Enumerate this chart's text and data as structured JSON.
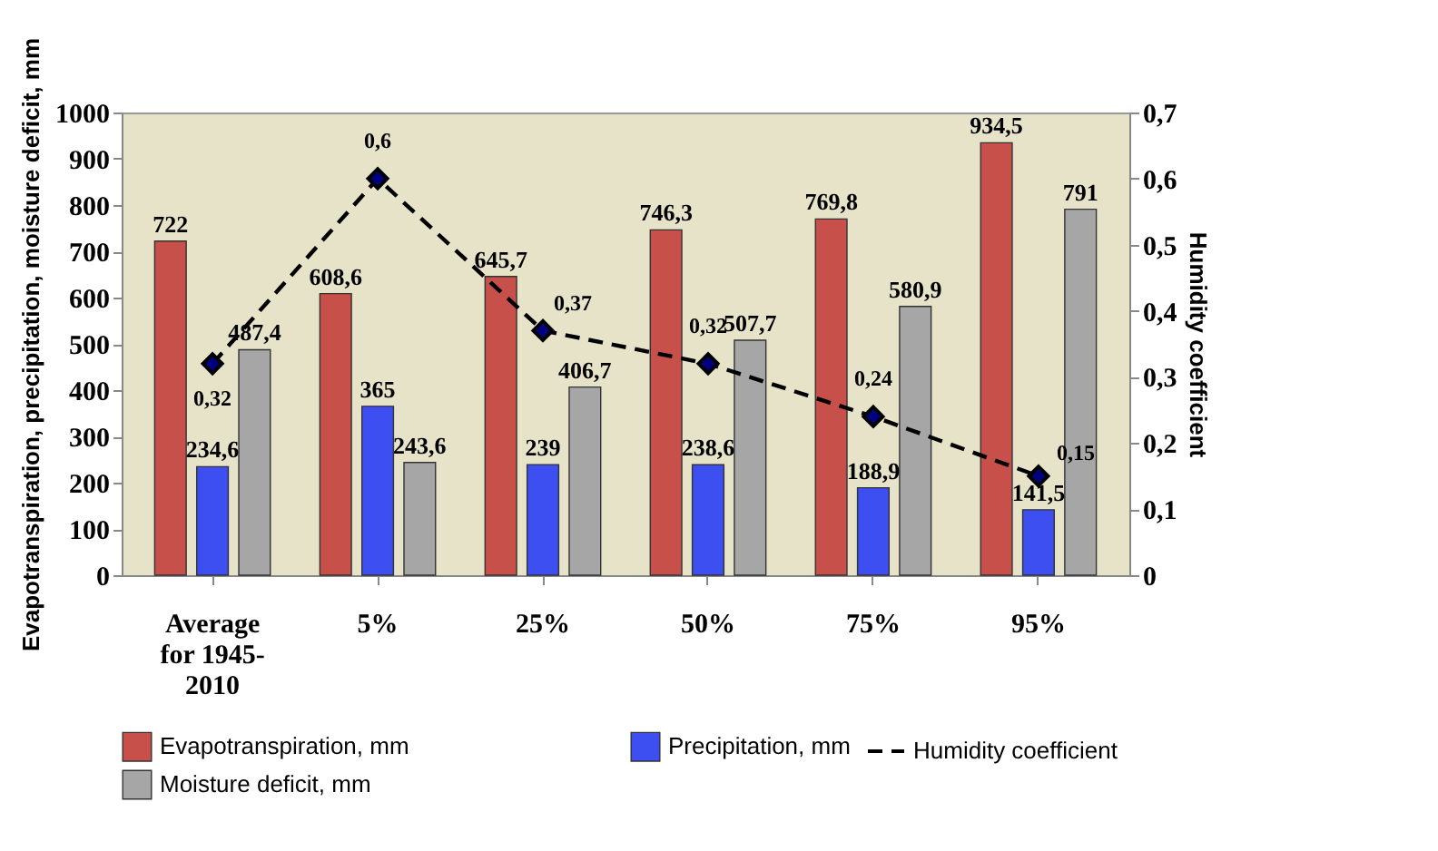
{
  "chart_data": {
    "type": "bar",
    "ylabel": "Evapotranspiration, precipitation, moisture deficit, mm",
    "y2label": "Humidity coefficient",
    "categories": [
      "Average for 1945-2010",
      "5%",
      "25%",
      "50%",
      "75%",
      "95%"
    ],
    "series": [
      {
        "name": "Evapotranspiration, mm",
        "color": "#c8504a",
        "values": [
          722,
          608.6,
          645.7,
          746.3,
          769.8,
          934.5
        ],
        "value_labels": [
          "722",
          "608,6",
          "645,7",
          "746,3",
          "769,8",
          "934,5"
        ]
      },
      {
        "name": "Precipitation, mm",
        "color": "#3d4ff0",
        "values": [
          234.6,
          365,
          239,
          238.6,
          188.9,
          141.5
        ],
        "value_labels": [
          "234,6",
          "365",
          "239",
          "238,6",
          "188,9",
          "141,5"
        ]
      },
      {
        "name": "Moisture deficit, mm",
        "color": "#a6a6a6",
        "values": [
          487.4,
          243.6,
          406.7,
          507.7,
          580.9,
          791
        ],
        "value_labels": [
          "487,4",
          "243,6",
          "406,7",
          "507,7",
          "580,9",
          "791"
        ]
      },
      {
        "name": "Humidity coefficient",
        "type": "line",
        "axis": "y2",
        "color": "#000080",
        "values": [
          0.32,
          0.6,
          0.37,
          0.32,
          0.24,
          0.15
        ],
        "value_labels": [
          "0,32",
          "0,6",
          "0,37",
          "0,32",
          "0,24",
          "0,15"
        ],
        "marker": "diamond",
        "line_style": "dashed"
      }
    ],
    "ylim": [
      0,
      1000
    ],
    "yticks": [
      0,
      100,
      200,
      300,
      400,
      500,
      600,
      700,
      800,
      900,
      1000
    ],
    "y2lim": [
      0,
      0.7
    ],
    "y2ticks": [
      0,
      {
        "value": 0.1,
        "label": "0,1"
      },
      {
        "value": 0.2,
        "label": "0,2"
      },
      {
        "value": 0.3,
        "label": "0,3"
      },
      {
        "value": 0.4,
        "label": "0,4"
      },
      {
        "value": 0.5,
        "label": "0,5"
      },
      {
        "value": 0.6,
        "label": "0,6"
      },
      {
        "value": 0.7,
        "label": "0,7"
      }
    ],
    "grid": false,
    "legend": "bottom"
  }
}
